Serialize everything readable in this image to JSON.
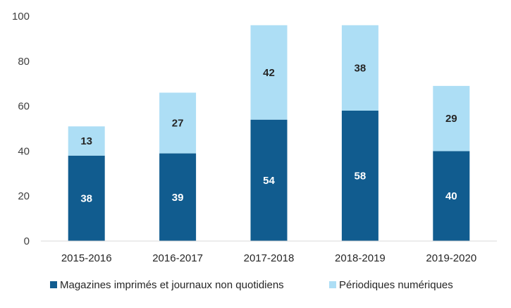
{
  "chart_data": {
    "type": "bar",
    "stacked": true,
    "title": "",
    "xlabel": "",
    "ylabel": "",
    "ylim": [
      0,
      100
    ],
    "yticks": [
      0,
      20,
      40,
      60,
      80,
      100
    ],
    "grid": false,
    "legend_position": "bottom",
    "categories": [
      "2015-2016",
      "2016-2017",
      "2017-2018",
      "2018-2019",
      "2019-2020"
    ],
    "series": [
      {
        "name": "Magazines imprimés et journaux non quotidiens",
        "values": [
          38,
          39,
          54,
          58,
          40
        ],
        "color": "#115C8F",
        "label_color": "#FFFFFF"
      },
      {
        "name": "Périodiques numériques",
        "values": [
          13,
          27,
          42,
          38,
          29
        ],
        "color": "#ADDEF5",
        "label_color": "#262626"
      }
    ]
  }
}
